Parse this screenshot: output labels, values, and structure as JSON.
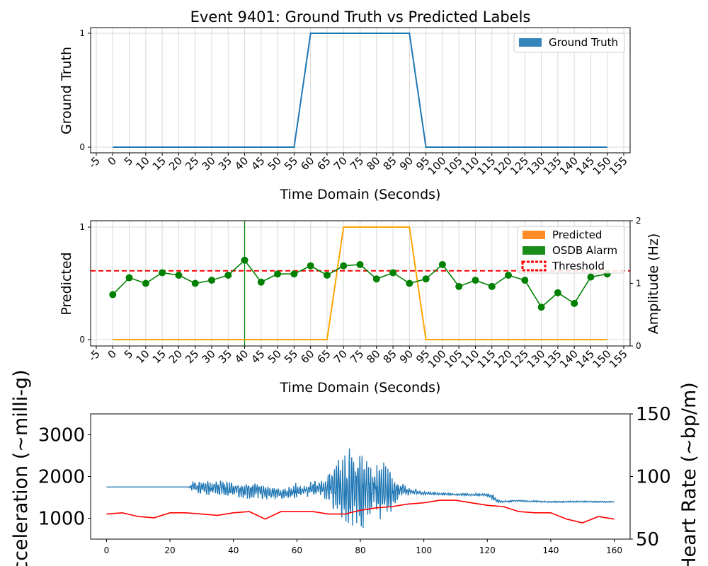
{
  "chart_data": [
    {
      "type": "line",
      "title": "Event 9401: Ground Truth vs Predicted Labels",
      "xlabel": "Time Domain (Seconds)",
      "ylabel": "Ground Truth",
      "xlim": [
        -5,
        155
      ],
      "ylim": [
        0,
        1
      ],
      "x_ticks": [
        -5,
        0,
        5,
        10,
        15,
        20,
        25,
        30,
        35,
        40,
        45,
        50,
        55,
        60,
        65,
        70,
        75,
        80,
        85,
        90,
        95,
        100,
        105,
        110,
        115,
        120,
        125,
        130,
        135,
        140,
        145,
        150,
        155
      ],
      "y_ticks": [
        0,
        1
      ],
      "grid": true,
      "legend": "top-right",
      "colors": {
        "ground_truth": "#1f77b4"
      },
      "series": [
        {
          "name": "Ground Truth",
          "x": [
            0,
            55,
            60,
            90,
            95,
            150
          ],
          "values": [
            0,
            0,
            1,
            1,
            0,
            0
          ]
        }
      ]
    },
    {
      "type": "line",
      "xlabel": "Time Domain (Seconds)",
      "ylabel": "Predicted",
      "y2label": "Amplitude (Hz)",
      "xlim": [
        -5,
        155
      ],
      "ylim": [
        0,
        1
      ],
      "y2lim": [
        0,
        2
      ],
      "x_ticks": [
        -5,
        0,
        5,
        10,
        15,
        20,
        25,
        30,
        35,
        40,
        45,
        50,
        55,
        60,
        65,
        70,
        75,
        80,
        85,
        90,
        95,
        100,
        105,
        110,
        115,
        120,
        125,
        130,
        135,
        140,
        145,
        150,
        155
      ],
      "y_ticks": [
        0,
        1
      ],
      "y2_ticks": [
        0,
        1,
        2
      ],
      "grid": true,
      "legend": "top-right",
      "colors": {
        "predicted": "#ffa500",
        "alarm": "#008000",
        "threshold": "#ff0000",
        "amplitude": "#008000"
      },
      "series": [
        {
          "name": "Predicted",
          "x": [
            0,
            65,
            70,
            90,
            95,
            150
          ],
          "values": [
            0,
            0,
            1,
            1,
            0,
            0
          ]
        },
        {
          "name": "OSDB Alarm",
          "x": [
            40
          ],
          "values": [
            1
          ]
        },
        {
          "name": "Threshold",
          "y2_value": 1.2
        },
        {
          "axis": "y2",
          "x": [
            0,
            5,
            10,
            15,
            20,
            25,
            30,
            35,
            40,
            45,
            50,
            55,
            60,
            65,
            70,
            75,
            80,
            85,
            90,
            95,
            100,
            105,
            110,
            115,
            120,
            125,
            130,
            135,
            140,
            145,
            150
          ],
          "values": [
            0.82,
            1.09,
            1.0,
            1.17,
            1.13,
            1.0,
            1.05,
            1.13,
            1.37,
            1.02,
            1.15,
            1.15,
            1.28,
            1.13,
            1.28,
            1.3,
            1.07,
            1.17,
            1.0,
            1.07,
            1.3,
            0.95,
            1.05,
            0.95,
            1.13,
            1.05,
            0.62,
            0.85,
            0.68,
            1.1,
            1.15
          ]
        }
      ]
    },
    {
      "type": "line",
      "xlabel": "",
      "ylabel": "Acceleration (~milli-g)",
      "y2label": "Heart Rate (~bp/m)",
      "xlim": [
        -5,
        165
      ],
      "ylim": [
        500,
        3500
      ],
      "y2lim": [
        50,
        150
      ],
      "x_ticks": [
        0,
        20,
        40,
        60,
        80,
        100,
        120,
        140,
        160
      ],
      "y_ticks": [
        1000,
        2000,
        3000
      ],
      "y2_ticks": [
        50,
        100,
        150
      ],
      "grid": false,
      "colors": {
        "acceleration": "#1f77b4",
        "heart_rate": "#ff0000"
      },
      "series": [
        {
          "axis": "y",
          "x": [
            0,
            26,
            27,
            40,
            55,
            60,
            68,
            72,
            75,
            78,
            80,
            82,
            85,
            88,
            90,
            92,
            95,
            100,
            110,
            120,
            122,
            123,
            125,
            130,
            140,
            150,
            160
          ],
          "values": [
            1750,
            1750,
            1740,
            1700,
            1600,
            1650,
            1720,
            1750,
            1750,
            1650,
            1700,
            1650,
            1700,
            1650,
            1580,
            1700,
            1650,
            1600,
            1570,
            1560,
            1500,
            1410,
            1400,
            1420,
            1390,
            1400,
            1390
          ],
          "noise": [
            0,
            0,
            150,
            220,
            160,
            200,
            200,
            650,
            1050,
            1100,
            1000,
            850,
            750,
            700,
            550,
            250,
            100,
            40,
            30,
            40,
            80,
            40,
            30,
            20,
            20,
            20,
            20
          ]
        },
        {
          "axis": "y2",
          "x": [
            0,
            5,
            10,
            15,
            20,
            25,
            30,
            35,
            40,
            45,
            50,
            55,
            60,
            65,
            70,
            75,
            80,
            85,
            90,
            95,
            100,
            105,
            110,
            115,
            120,
            125,
            130,
            135,
            140,
            145,
            150,
            155,
            160
          ],
          "values": [
            70,
            71,
            68,
            67,
            71,
            71,
            70,
            69,
            71,
            72,
            66,
            72,
            72,
            72,
            70,
            70,
            73,
            75,
            76,
            78,
            79,
            81,
            81,
            79,
            77,
            76,
            72,
            71,
            71,
            66,
            63,
            68,
            66
          ]
        }
      ]
    }
  ]
}
